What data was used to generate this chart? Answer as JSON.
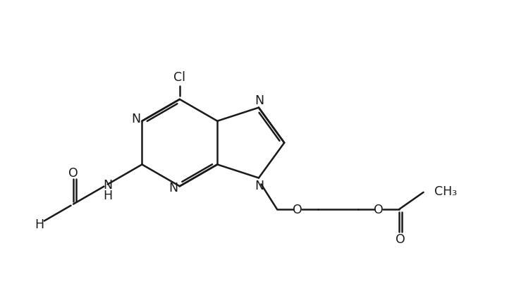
{
  "bg_color": "#ffffff",
  "line_color": "#1a1a1a",
  "line_width": 1.8,
  "font_size": 12.5,
  "figsize": [
    7.29,
    4.14
  ],
  "dpi": 100,
  "xlim": [
    0.0,
    10.5
  ],
  "ylim": [
    0.5,
    6.5
  ]
}
